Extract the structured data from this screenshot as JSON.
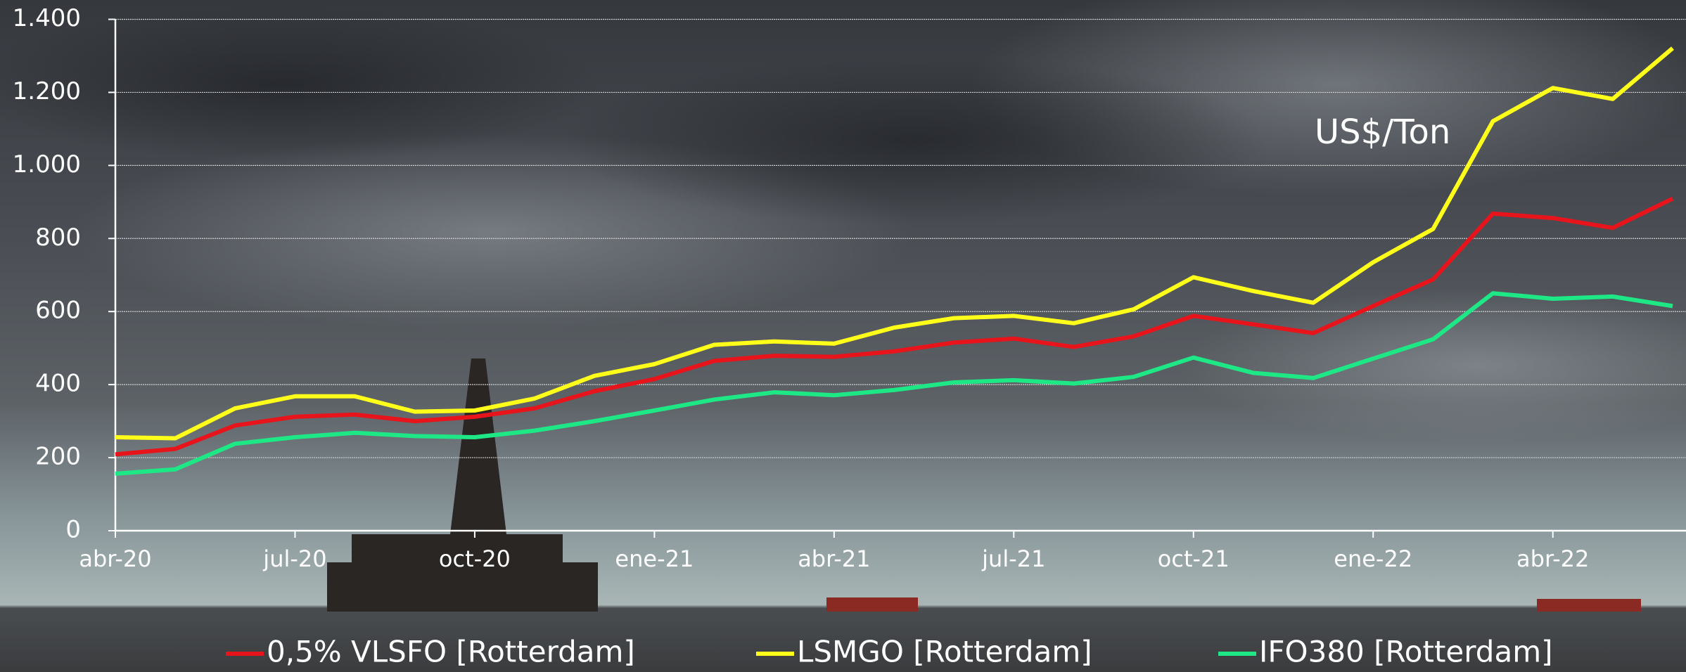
{
  "chart_data": {
    "type": "line",
    "annotation": "US$/Ton",
    "categories": [
      "abr-20",
      null,
      null,
      "jul-20",
      null,
      null,
      "oct-20",
      null,
      null,
      "ene-21",
      null,
      null,
      "abr-21",
      null,
      null,
      "jul-21",
      null,
      null,
      "oct-21",
      null,
      null,
      "ene-22",
      null,
      null,
      "abr-22",
      null,
      null
    ],
    "series": [
      {
        "name": "0,5% VLSFO [Rotterdam]",
        "color": "#e8141c",
        "values": [
          209,
          224,
          288,
          312,
          318,
          300,
          312,
          335,
          382,
          415,
          465,
          479,
          476,
          491,
          515,
          526,
          503,
          532,
          588,
          565,
          541,
          615,
          688,
          868,
          856,
          829,
          909
        ]
      },
      {
        "name": "LSMGO [Rotterdam]",
        "color": "#ffff1a",
        "values": [
          256,
          253,
          335,
          368,
          368,
          326,
          329,
          362,
          424,
          456,
          509,
          518,
          512,
          556,
          582,
          588,
          568,
          606,
          694,
          656,
          624,
          735,
          826,
          1121,
          1212,
          1182,
          1321
        ]
      },
      {
        "name": "IFO380 [Rotterdam]",
        "color": "#1ee886",
        "values": [
          156,
          168,
          238,
          256,
          268,
          259,
          256,
          274,
          300,
          329,
          359,
          379,
          371,
          385,
          406,
          412,
          403,
          421,
          474,
          432,
          418,
          471,
          524,
          650,
          635,
          641,
          615
        ]
      }
    ],
    "ylim": [
      0,
      1400
    ],
    "yticks": [
      0,
      200,
      400,
      600,
      800,
      {
        "value": 1000,
        "label": "1.000"
      },
      {
        "value": 1200,
        "label": "1.200"
      },
      {
        "value": 1400,
        "label": "1.400"
      }
    ],
    "grid": true
  }
}
